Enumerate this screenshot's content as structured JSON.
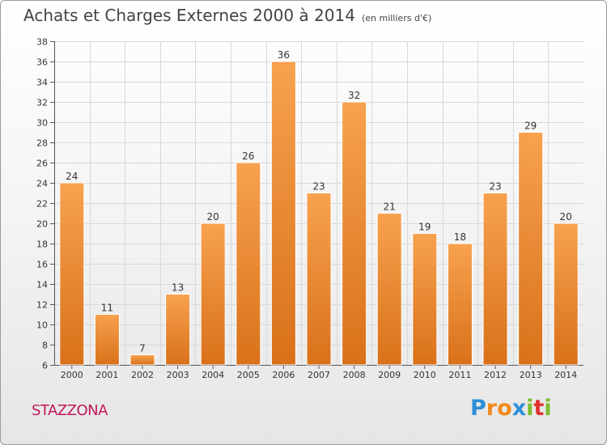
{
  "header": {
    "title": "Achats et Charges Externes 2000 à 2014",
    "unit": "(en milliers d'€)"
  },
  "footer": {
    "commune": "STAZZONA",
    "logo_letters": [
      "P",
      "r",
      "o",
      "x",
      "i",
      "t",
      "i"
    ],
    "logo_colors": [
      "#2e8fd9",
      "#f08a1c",
      "#f08a1c",
      "#2e8fd9",
      "#7dbb2e",
      "#e0312e",
      "#7dbb2e"
    ]
  },
  "chart_data": {
    "type": "bar",
    "title": "Achats et Charges Externes 2000 à 2014",
    "subtitle": "(en milliers d'€)",
    "categories": [
      "2000",
      "2001",
      "2002",
      "2003",
      "2004",
      "2005",
      "2006",
      "2007",
      "2008",
      "2009",
      "2010",
      "2011",
      "2012",
      "2013",
      "2014"
    ],
    "values": [
      24,
      11,
      7,
      13,
      20,
      26,
      36,
      23,
      32,
      21,
      19,
      18,
      23,
      29,
      20
    ],
    "ylim": [
      6,
      38
    ],
    "yticks": [
      6,
      8,
      10,
      12,
      14,
      16,
      18,
      20,
      22,
      24,
      26,
      28,
      30,
      32,
      34,
      36,
      38
    ],
    "grid": true,
    "bar_color_top": "#f7a24f",
    "bar_color_bottom": "#d9711a",
    "grid_color": "#d8d8d8"
  }
}
